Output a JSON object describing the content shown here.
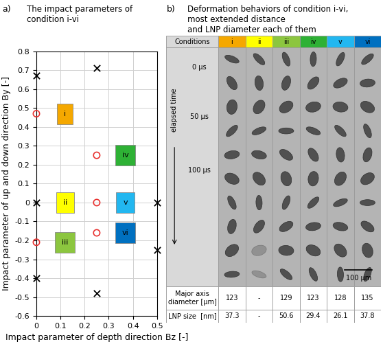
{
  "chart_data": {
    "type": "scatter",
    "panel": "a)",
    "title": "The impact parameters of\ncondition i-vi",
    "x_label": "Impact parameter of depth direction Bz [-]",
    "y_label": "Impact parameter of up and down direction By [-]",
    "xlim": [
      0,
      0.5
    ],
    "ylim": [
      -0.6,
      0.8
    ],
    "xticks": [
      0,
      0.1,
      0.2,
      0.3,
      0.4,
      0.5
    ],
    "yticks": [
      -0.6,
      -0.5,
      -0.4,
      -0.3,
      -0.2,
      -0.1,
      0,
      0.1,
      0.2,
      0.3,
      0.4,
      0.5,
      0.6,
      0.7,
      0.8
    ],
    "grid": true,
    "series": [
      {
        "marker": "x",
        "color": "#000000",
        "x": [
          0,
          0.25,
          0,
          0.5,
          0,
          0.25,
          0.5
        ],
        "values": [
          0.67,
          0.71,
          0,
          0,
          -0.4,
          -0.48,
          -0.25
        ]
      },
      {
        "marker": "o",
        "color": "#e8312f",
        "x": [
          0,
          0.25,
          0.25,
          0.25,
          0
        ],
        "values": [
          0.47,
          0.25,
          0,
          -0.16,
          -0.21
        ]
      }
    ],
    "annotations": [
      {
        "text": "i",
        "x": 0,
        "y": 0.47,
        "color": "#f5a800"
      },
      {
        "text": "ii",
        "x": 0,
        "y": 0,
        "color": "#ffff00"
      },
      {
        "text": "iii",
        "x": 0,
        "y": -0.21,
        "color": "#8cc63f"
      },
      {
        "text": "iv",
        "x": 0.25,
        "y": 0.25,
        "color": "#2eb135"
      },
      {
        "text": "v",
        "x": 0.25,
        "y": 0,
        "color": "#22b7f0"
      },
      {
        "text": "vi",
        "x": 0.25,
        "y": -0.16,
        "color": "#0070c0"
      }
    ]
  },
  "table": {
    "panel": "b)",
    "title": "Deformation behaviors of condition i-vi,\nmost extended distance\nand LNP diameter each of them",
    "header": [
      "Conditions",
      "i",
      "ii",
      "iii",
      "iv",
      "v",
      "vi"
    ],
    "header_colors": [
      "#d9d9d9",
      "#f5a800",
      "#ffff00",
      "#8cc63f",
      "#2eb135",
      "#22b7f0",
      "#0070c0"
    ],
    "time_label": "elapsed time",
    "time_marks": [
      "0 µs",
      "50 µs",
      "100 µs"
    ],
    "scale_bar": "100 µm",
    "rows": [
      [
        "Major axis\ndiameter [µm]",
        "123",
        "-",
        "129",
        "123",
        "128",
        "135"
      ],
      [
        "LNP size  [nm]",
        "37.3",
        "-",
        "50.6",
        "29.4",
        "26.1",
        "37.8"
      ]
    ]
  }
}
